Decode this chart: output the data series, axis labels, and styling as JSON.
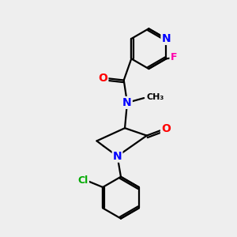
{
  "background_color": "#eeeeee",
  "atom_colors": {
    "N": "#0000ff",
    "O": "#ff0000",
    "F": "#ff00aa",
    "Cl": "#00aa00",
    "C": "#000000"
  },
  "bond_color": "#000000",
  "bond_width": 1.6,
  "font_size": 9,
  "figsize": [
    3.0,
    3.0
  ],
  "dpi": 100
}
